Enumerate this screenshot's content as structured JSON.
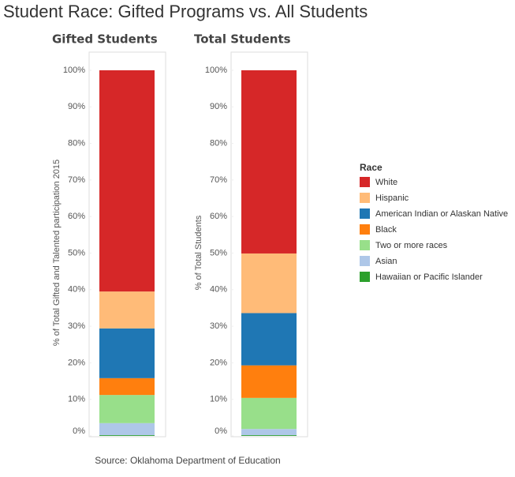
{
  "title": "Student Race: Gifted Programs vs. All Students",
  "legend": {
    "title": "Race"
  },
  "source": "Source: Oklahoma Department of Education",
  "chart_data": [
    {
      "type": "bar",
      "stacked": true,
      "title": "Gifted Students",
      "y_label": "% of Total Gifted and Talented participation 2015",
      "categories": [
        null
      ],
      "ylim": [
        0,
        100
      ],
      "yticks": [
        {
          "value": 0,
          "label": "0%"
        },
        {
          "value": 10,
          "label": "10%"
        },
        {
          "value": 20,
          "label": "20%"
        },
        {
          "value": 30,
          "label": "30%"
        },
        {
          "value": 40,
          "label": "40%"
        },
        {
          "value": 50,
          "label": "50%"
        },
        {
          "value": 60,
          "label": "60%"
        },
        {
          "value": 70,
          "label": "70%"
        },
        {
          "value": 80,
          "label": "80%"
        },
        {
          "value": 90,
          "label": "90%"
        },
        {
          "value": 100,
          "label": "100%"
        }
      ],
      "grid": false,
      "series": [
        {
          "name": "White",
          "color": "#d62728",
          "values": [
            60.5
          ]
        },
        {
          "name": "Hispanic",
          "color": "#ffbb78",
          "values": [
            10.1
          ]
        },
        {
          "name": "American Indian or Alaskan Native",
          "color": "#1f77b4",
          "values": [
            13.6
          ]
        },
        {
          "name": "Black",
          "color": "#ff7f0e",
          "values": [
            4.6
          ]
        },
        {
          "name": "Two or more races",
          "color": "#98df8a",
          "values": [
            7.7
          ]
        },
        {
          "name": "Asian",
          "color": "#aec7e8",
          "values": [
            3.3
          ]
        },
        {
          "name": "Hawaiian or Pacific Islander",
          "color": "#2ca02c",
          "values": [
            0.2
          ]
        }
      ]
    },
    {
      "type": "bar",
      "stacked": true,
      "title": "Total Students",
      "y_label": "% of Total Students",
      "categories": [
        null
      ],
      "ylim": [
        0,
        100
      ],
      "yticks": [
        {
          "value": 0,
          "label": "0%"
        },
        {
          "value": 10,
          "label": "10%"
        },
        {
          "value": 20,
          "label": "20%"
        },
        {
          "value": 30,
          "label": "30%"
        },
        {
          "value": 40,
          "label": "40%"
        },
        {
          "value": 50,
          "label": "50%"
        },
        {
          "value": 60,
          "label": "60%"
        },
        {
          "value": 70,
          "label": "70%"
        },
        {
          "value": 80,
          "label": "80%"
        },
        {
          "value": 90,
          "label": "90%"
        },
        {
          "value": 100,
          "label": "100%"
        }
      ],
      "grid": false,
      "series": [
        {
          "name": "White",
          "color": "#d62728",
          "values": [
            50.1
          ]
        },
        {
          "name": "Hispanic",
          "color": "#ffbb78",
          "values": [
            16.3
          ]
        },
        {
          "name": "American Indian or Alaskan Native",
          "color": "#1f77b4",
          "values": [
            14.3
          ]
        },
        {
          "name": "Black",
          "color": "#ff7f0e",
          "values": [
            8.9
          ]
        },
        {
          "name": "Two or more races",
          "color": "#98df8a",
          "values": [
            8.5
          ]
        },
        {
          "name": "Asian",
          "color": "#aec7e8",
          "values": [
            1.7
          ]
        },
        {
          "name": "Hawaiian or Pacific Islander",
          "color": "#2ca02c",
          "values": [
            0.2
          ]
        }
      ]
    }
  ]
}
